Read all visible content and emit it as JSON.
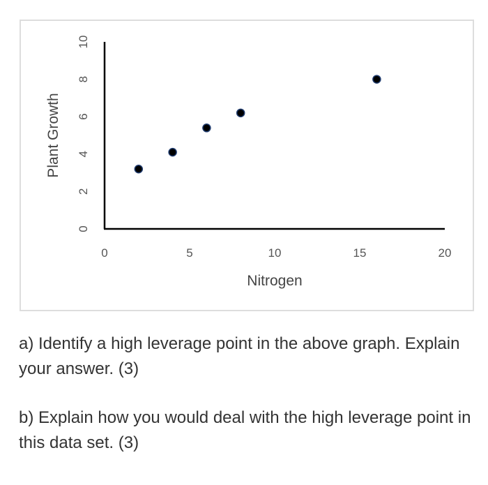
{
  "chart_data": {
    "type": "scatter",
    "title": "",
    "xlabel": "Nitrogen",
    "ylabel": "Plant Growth",
    "xlim": [
      0,
      20
    ],
    "ylim": [
      0,
      10
    ],
    "xticks": [
      "0",
      "5",
      "10",
      "15",
      "20"
    ],
    "yticks": [
      "0",
      "2",
      "4",
      "6",
      "8",
      "10"
    ],
    "grid": false,
    "legend": "none",
    "marker_color": "#000000",
    "marker_edge_color": "#1f3b6e",
    "series": [
      {
        "x": [
          2,
          4,
          6,
          8,
          16
        ],
        "y": [
          3.2,
          4.1,
          5.4,
          6.2,
          8.0
        ]
      }
    ]
  },
  "questions": {
    "a": "a) Identify a high leverage point in the above graph. Explain your answer. (3)",
    "b": "b) Explain how you would deal with the high leverage point in this data set. (3)"
  }
}
